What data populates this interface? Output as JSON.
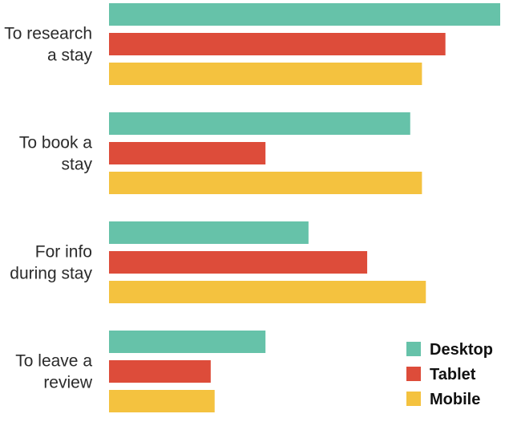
{
  "chart_data": {
    "type": "bar",
    "orientation": "horizontal",
    "categories": [
      [
        "To research",
        "a stay"
      ],
      [
        "To book a",
        "stay"
      ],
      [
        "For info",
        "during stay"
      ],
      [
        "To leave a",
        "review"
      ]
    ],
    "series": [
      {
        "name": "Desktop",
        "color": "#66c2a9",
        "values": [
          100,
          77,
          51,
          40
        ]
      },
      {
        "name": "Tablet",
        "color": "#dd4c3a",
        "values": [
          86,
          40,
          66,
          26
        ]
      },
      {
        "name": "Mobile",
        "color": "#f4c23f",
        "values": [
          80,
          80,
          81,
          27
        ]
      }
    ],
    "title": "",
    "xlabel": "",
    "ylabel": "",
    "xlim": [
      0,
      100
    ],
    "grid": false,
    "legend": "bottom-right"
  }
}
